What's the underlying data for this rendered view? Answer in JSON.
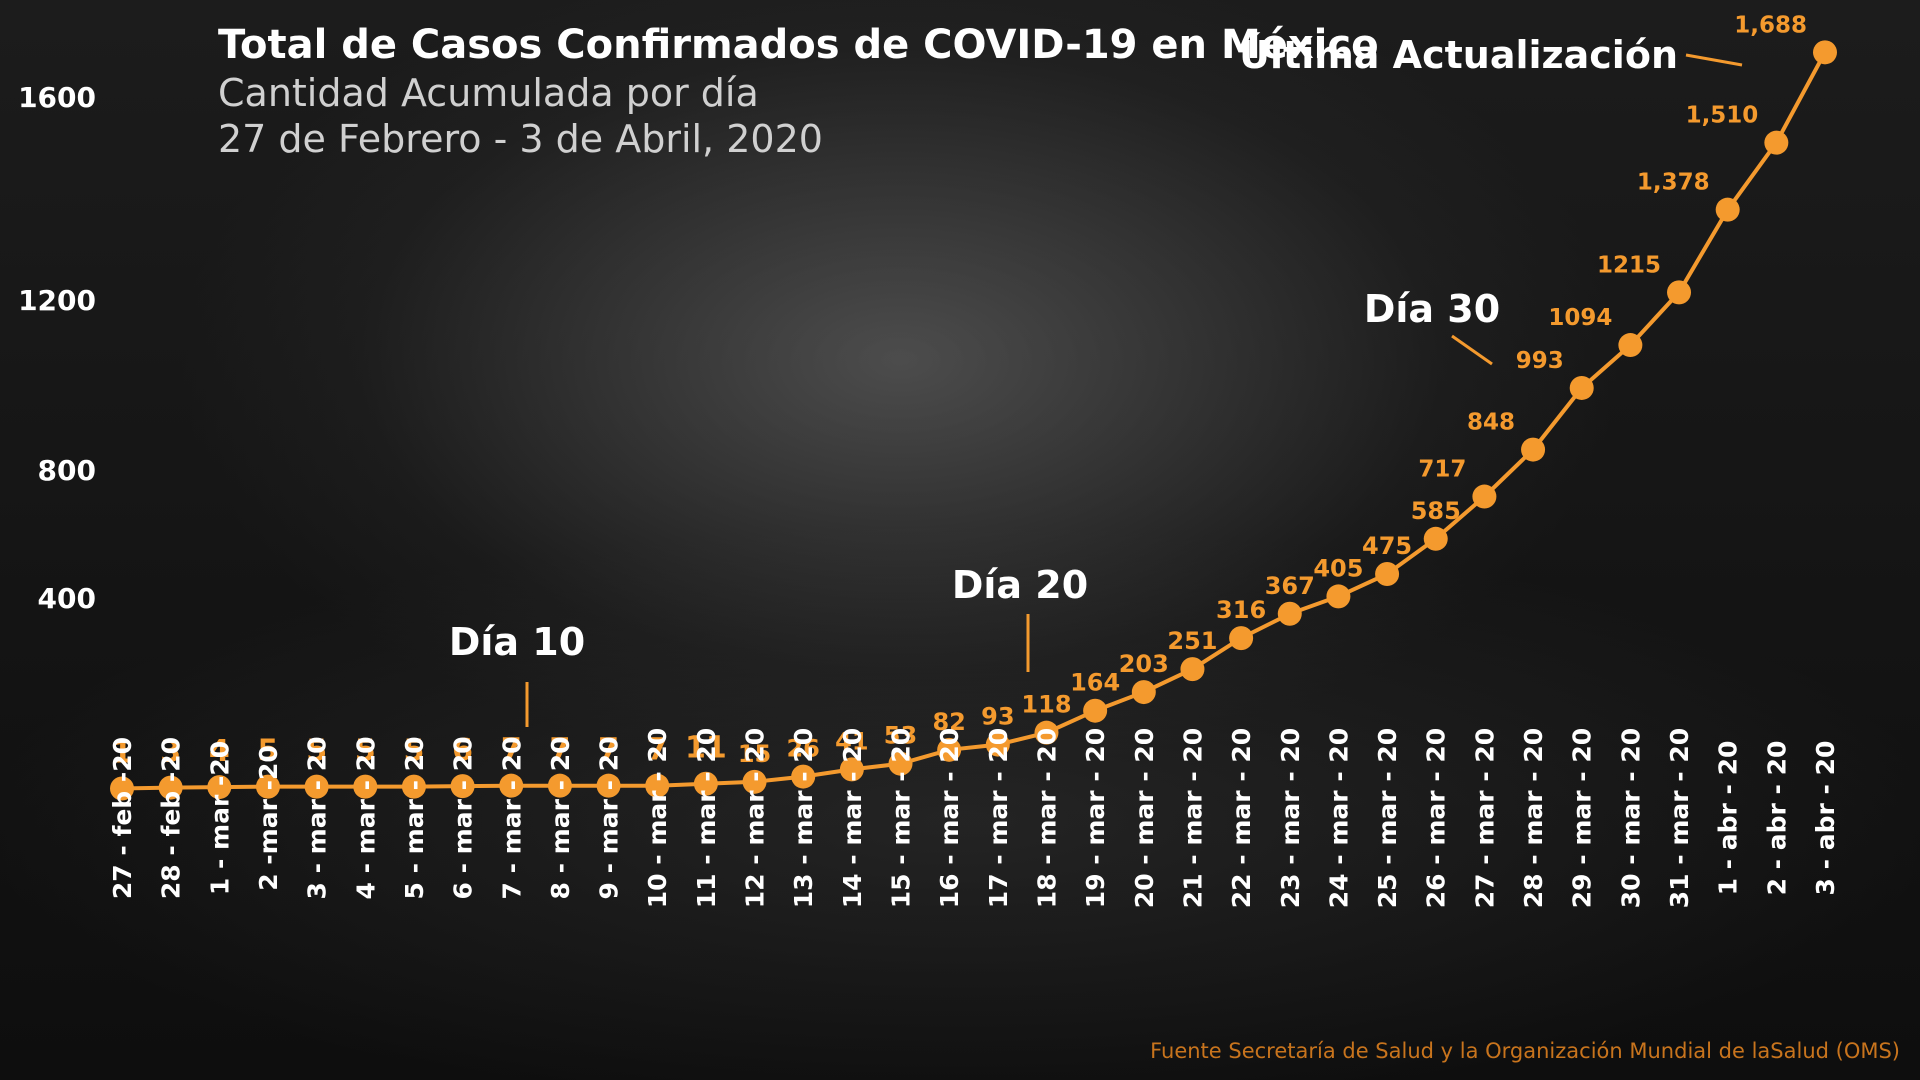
{
  "colors": {
    "line": "#f49a2e",
    "text": "#ffffff",
    "subtitle": "#d0d0d0",
    "source": "#c8741d",
    "background": "#141414"
  },
  "chart_data": {
    "type": "line",
    "title": "Total de Casos Confirmados de COVID-19 en México",
    "subtitle_1": "Cantidad Acumulada por día",
    "subtitle_2": "27 de Febrero - 3 de Abril, 2020",
    "x": [
      "27 - feb -20",
      "28 - feb -20",
      "1 - mar -20",
      "2 -mar -20",
      "3 - mar - 20",
      "4 - mar - 20",
      "5 - mar - 20",
      "6 - mar - 20",
      "7 - mar - 20",
      "8 - mar - 20",
      "9 - mar - 20",
      "10 - mar - 20",
      "11 - mar - 20",
      "12 - mar - 20",
      "13 - mar - 20",
      "14 - mar - 20",
      "15 - mar - 20",
      "16 - mar - 20",
      "17 - mar - 20",
      "18 - mar - 20",
      "19 - mar - 20",
      "20 - mar - 20",
      "21 - mar - 20",
      "22 - mar - 20",
      "23 - mar - 20",
      "24 - mar - 20",
      "25 - mar - 20",
      "26 - mar - 20",
      "27 - mar - 20",
      "28 - mar - 20",
      "29 - mar - 20",
      "30 - mar - 20",
      "31 - mar - 20",
      "1 - abr - 20",
      "2 - abr - 20",
      "3 - abr - 20"
    ],
    "values": [
      1,
      3,
      4,
      5,
      5,
      5,
      5,
      6,
      7,
      7,
      7,
      7,
      11,
      15,
      26,
      41,
      53,
      82,
      93,
      118,
      164,
      203,
      251,
      316,
      367,
      405,
      475,
      585,
      717,
      848,
      993,
      1094,
      1215,
      1378,
      1510,
      1688
    ],
    "data_labels": [
      "1",
      "3",
      "4",
      "5",
      "5",
      "5",
      "5",
      "6",
      "7",
      "7",
      "7",
      "7",
      "11",
      "15",
      "26",
      "41",
      "53",
      "82",
      "93",
      "118",
      "164",
      "203",
      "251",
      "316",
      "367",
      "405",
      "475",
      "585",
      "717",
      "848",
      "993",
      "1094",
      "1215",
      "1,378",
      "1,510",
      "1,688"
    ],
    "y_ticks": [
      "400",
      "800",
      "1200",
      "1600"
    ],
    "y_tick_values": [
      400,
      800,
      1200,
      1600
    ],
    "ylim": [
      0,
      1750
    ],
    "grid": false,
    "annotations": [
      {
        "text": "Día 10",
        "index": 8
      },
      {
        "text": "Día 20",
        "index": 18
      },
      {
        "text": "Día 30",
        "index": 28
      },
      {
        "text": "Última Actualización",
        "index": 35
      }
    ]
  },
  "source": "Fuente Secretaría de Salud y la Organización Mundial de laSalud (OMS)"
}
